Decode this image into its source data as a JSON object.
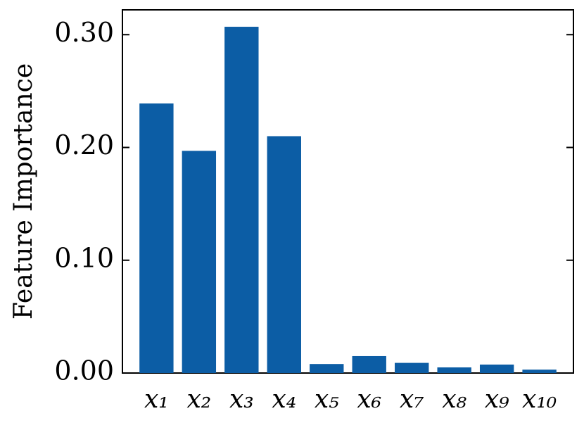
{
  "chart_data": {
    "type": "bar",
    "y_label": "Feature Importance",
    "categories": [
      "x₁",
      "x₂",
      "x₃",
      "x₄",
      "x₅",
      "x₆",
      "x₇",
      "x₈",
      "x₉",
      "x₁₀"
    ],
    "values": [
      0.239,
      0.197,
      0.307,
      0.21,
      0.008,
      0.015,
      0.009,
      0.005,
      0.0075,
      0.003
    ],
    "color": "#0c5da5",
    "ylim": [
      0,
      0.322
    ],
    "yticks": [
      {
        "value": 0,
        "label": "0.00"
      },
      {
        "value": 0.1,
        "label": "0.10"
      },
      {
        "value": 0.2,
        "label": "0.20"
      },
      {
        "value": 0.3,
        "label": "0.30"
      }
    ]
  }
}
